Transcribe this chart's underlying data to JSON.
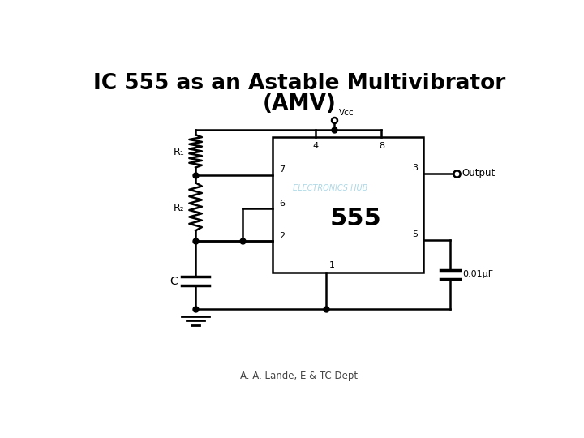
{
  "title_line1": "IC 555 as an Astable Multivibrator",
  "title_line2": "(AMV)",
  "footer": "A. A. Lande, E & TC Dept",
  "ic_label": "555",
  "component_labels": {
    "R1": "R₁",
    "R2": "R₂",
    "C": "C",
    "Vcc": "Vᴄᴄ",
    "Output": "Output",
    "cap2": "0.01μF"
  },
  "bg_color": "#ffffff",
  "line_color": "#000000",
  "watermark": "ELECTRONICS HUB",
  "watermark_color": "#add8e6"
}
